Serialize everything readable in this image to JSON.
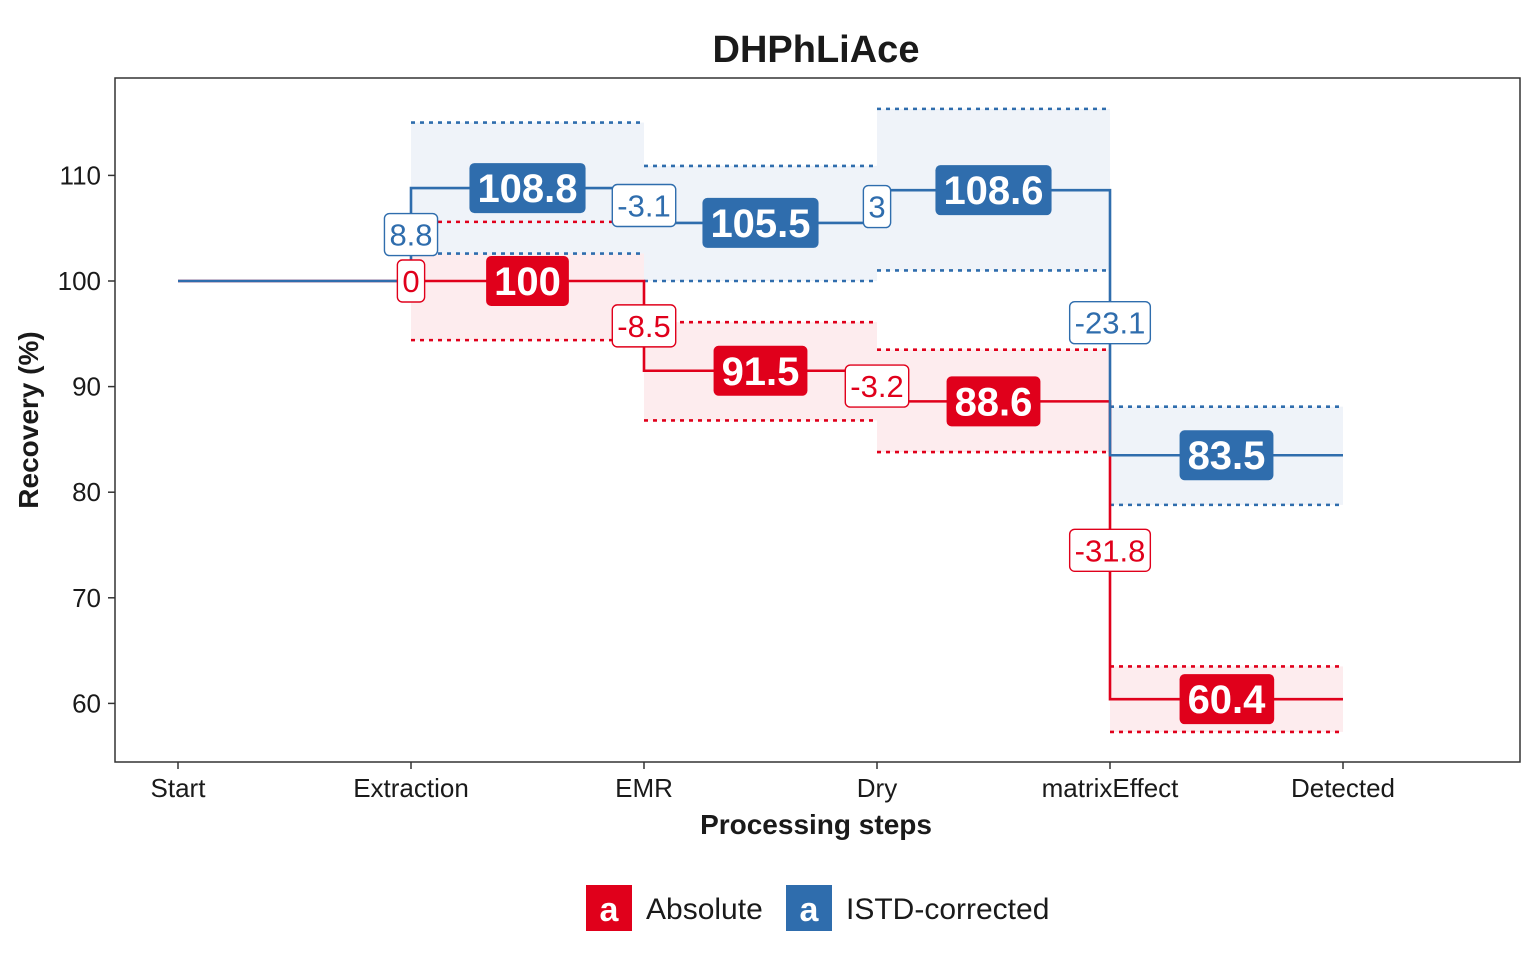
{
  "chart_data": {
    "type": "step",
    "title": "DHPhLiAce",
    "xlabel": "Processing steps",
    "ylabel": "Recovery (%)",
    "categories": [
      "Start",
      "Extraction",
      "EMR",
      "Dry",
      "matrixEffect",
      "Detected"
    ],
    "ylim": [
      54.5,
      119
    ],
    "yticks": [
      60,
      70,
      80,
      90,
      100,
      110
    ],
    "grid": false,
    "legend_position": "bottom",
    "series": [
      {
        "name": "Absolute",
        "color": "#E0001B",
        "band_color": "#FDECEE",
        "start_value": 100,
        "steps": [
          {
            "value": 100,
            "value_label": "100",
            "delta_label": "0",
            "lower": 94.4,
            "upper": 105.6
          },
          {
            "value": 91.5,
            "value_label": "91.5",
            "delta_label": "-8.5",
            "lower": 86.8,
            "upper": 96.1
          },
          {
            "value": 88.6,
            "value_label": "88.6",
            "delta_label": "-3.2",
            "lower": 83.8,
            "upper": 93.5
          },
          {
            "value": 60.4,
            "value_label": "60.4",
            "delta_label": "-31.8",
            "lower": 57.3,
            "upper": 63.5
          }
        ]
      },
      {
        "name": "ISTD-corrected",
        "color": "#2F6DAD",
        "band_color": "#EFF3F9",
        "start_value": 100,
        "steps": [
          {
            "value": 108.8,
            "value_label": "108.8",
            "delta_label": "8.8",
            "lower": 102.6,
            "upper": 115.0
          },
          {
            "value": 105.5,
            "value_label": "105.5",
            "delta_label": "-3.1",
            "lower": 100.0,
            "upper": 110.9
          },
          {
            "value": 108.6,
            "value_label": "108.6",
            "delta_label": "3",
            "lower": 101.0,
            "upper": 116.3
          },
          {
            "value": 83.5,
            "value_label": "83.5",
            "delta_label": "-23.1",
            "lower": 78.8,
            "upper": 88.1
          }
        ]
      }
    ]
  },
  "legend": {
    "glyph": "a",
    "items": [
      "Absolute",
      "ISTD-corrected"
    ]
  }
}
